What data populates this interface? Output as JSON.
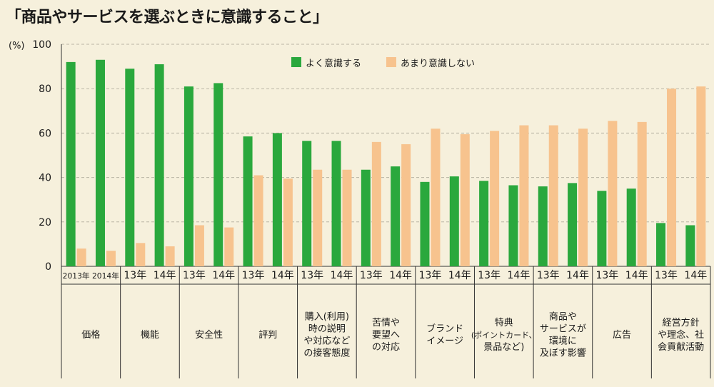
{
  "title": "「商品やサービスを選ぶときに意識すること」",
  "chart_data": {
    "type": "bar",
    "ylabel": "(%)",
    "ylim": [
      0,
      100
    ],
    "yticks": [
      0,
      20,
      40,
      60,
      80,
      100
    ],
    "grid": "horizontal dashed",
    "legend_position": "top-center",
    "series": [
      {
        "name": "よく意識する",
        "color": "#2aa83d"
      },
      {
        "name": "あまり意識しない",
        "color": "#f7c38e"
      }
    ],
    "groups": [
      {
        "label": "価格",
        "years": [
          "2013年",
          "2014年"
        ],
        "values": [
          [
            92,
            8
          ],
          [
            93,
            7
          ]
        ]
      },
      {
        "label": "機能",
        "years": [
          "13年",
          "14年"
        ],
        "values": [
          [
            89,
            10.5
          ],
          [
            91,
            9
          ]
        ]
      },
      {
        "label": "安全性",
        "years": [
          "13年",
          "14年"
        ],
        "values": [
          [
            81,
            18.5
          ],
          [
            82.5,
            17.5
          ]
        ]
      },
      {
        "label": "評判",
        "years": [
          "13年",
          "14年"
        ],
        "values": [
          [
            58.5,
            41
          ],
          [
            60,
            39.5
          ]
        ]
      },
      {
        "label": "購入(利用)\n時の説明\nや対応など\nの接客態度",
        "years": [
          "13年",
          "14年"
        ],
        "values": [
          [
            56.5,
            43.5
          ],
          [
            56.5,
            43.5
          ]
        ]
      },
      {
        "label": "苦情や\n要望へ\nの対応",
        "years": [
          "13年",
          "14年"
        ],
        "values": [
          [
            43.5,
            56
          ],
          [
            45,
            55
          ]
        ]
      },
      {
        "label": "ブランド\nイメージ",
        "years": [
          "13年",
          "14年"
        ],
        "values": [
          [
            38,
            62
          ],
          [
            40.5,
            59.5
          ]
        ]
      },
      {
        "label": "特典\n(ポイントカード、\n景品など)",
        "years": [
          "13年",
          "14年"
        ],
        "values": [
          [
            38.5,
            61
          ],
          [
            36.5,
            63.5
          ]
        ]
      },
      {
        "label": "商品や\nサービスが\n環境に\n及ぼす影響",
        "years": [
          "13年",
          "14年"
        ],
        "values": [
          [
            36,
            63.5
          ],
          [
            37.5,
            62
          ]
        ]
      },
      {
        "label": "広告",
        "years": [
          "13年",
          "14年"
        ],
        "values": [
          [
            34,
            65.5
          ],
          [
            35,
            65
          ]
        ]
      },
      {
        "label": "経営方針\nや理念、社\n会貢献活動",
        "years": [
          "13年",
          "14年"
        ],
        "values": [
          [
            19.5,
            80
          ],
          [
            18.5,
            81
          ]
        ]
      }
    ]
  }
}
